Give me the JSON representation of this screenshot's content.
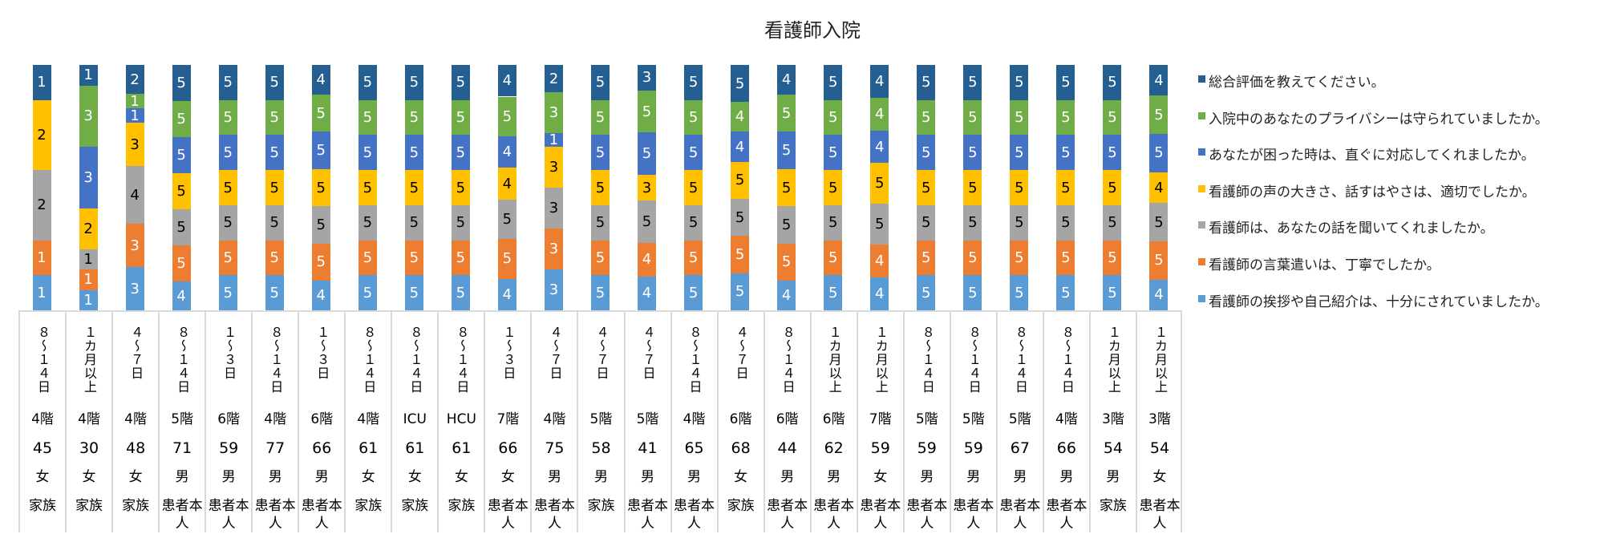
{
  "chart_data": {
    "type": "bar",
    "stacked": "100%",
    "title": "看護師入院",
    "legend_position": "right",
    "categories": [
      {
        "duration": "８～１４日",
        "floor": "4階",
        "age": "45",
        "sex": "女",
        "relation": "家族"
      },
      {
        "duration": "１カ月以上",
        "floor": "4階",
        "age": "30",
        "sex": "女",
        "relation": "家族"
      },
      {
        "duration": "４～７日",
        "floor": "4階",
        "age": "48",
        "sex": "女",
        "relation": "家族"
      },
      {
        "duration": "８～１４日",
        "floor": "5階",
        "age": "71",
        "sex": "男",
        "relation": "患者本人"
      },
      {
        "duration": "１～３日",
        "floor": "6階",
        "age": "59",
        "sex": "男",
        "relation": "患者本人"
      },
      {
        "duration": "８～１４日",
        "floor": "4階",
        "age": "77",
        "sex": "男",
        "relation": "患者本人"
      },
      {
        "duration": "１～３日",
        "floor": "6階",
        "age": "66",
        "sex": "男",
        "relation": "患者本人"
      },
      {
        "duration": "８～１４日",
        "floor": "4階",
        "age": "61",
        "sex": "女",
        "relation": "家族"
      },
      {
        "duration": "８～１４日",
        "floor": "ICU",
        "age": "61",
        "sex": "女",
        "relation": "家族"
      },
      {
        "duration": "８～１４日",
        "floor": "HCU",
        "age": "61",
        "sex": "女",
        "relation": "家族"
      },
      {
        "duration": "１～３日",
        "floor": "7階",
        "age": "66",
        "sex": "女",
        "relation": "患者本人"
      },
      {
        "duration": "４～７日",
        "floor": "4階",
        "age": "75",
        "sex": "男",
        "relation": "患者本人"
      },
      {
        "duration": "４～７日",
        "floor": "5階",
        "age": "58",
        "sex": "男",
        "relation": "家族"
      },
      {
        "duration": "４～７日",
        "floor": "5階",
        "age": "41",
        "sex": "男",
        "relation": "患者本人"
      },
      {
        "duration": "８～１４日",
        "floor": "4階",
        "age": "65",
        "sex": "男",
        "relation": "患者本人"
      },
      {
        "duration": "４～７日",
        "floor": "6階",
        "age": "68",
        "sex": "女",
        "relation": "家族"
      },
      {
        "duration": "８～１４日",
        "floor": "6階",
        "age": "44",
        "sex": "男",
        "relation": "患者本人"
      },
      {
        "duration": "１カ月以上",
        "floor": "6階",
        "age": "62",
        "sex": "男",
        "relation": "患者本人"
      },
      {
        "duration": "１カ月以上",
        "floor": "7階",
        "age": "59",
        "sex": "女",
        "relation": "患者本人"
      },
      {
        "duration": "８～１４日",
        "floor": "5階",
        "age": "59",
        "sex": "男",
        "relation": "患者本人"
      },
      {
        "duration": "８～１４日",
        "floor": "5階",
        "age": "59",
        "sex": "男",
        "relation": "患者本人"
      },
      {
        "duration": "８～１４日",
        "floor": "5階",
        "age": "67",
        "sex": "男",
        "relation": "患者本人"
      },
      {
        "duration": "８～１４日",
        "floor": "4階",
        "age": "66",
        "sex": "男",
        "relation": "患者本人"
      },
      {
        "duration": "１カ月以上",
        "floor": "3階",
        "age": "54",
        "sex": "男",
        "relation": "家族"
      },
      {
        "duration": "１カ月以上",
        "floor": "3階",
        "age": "54",
        "sex": "女",
        "relation": "患者本人"
      }
    ],
    "series": [
      {
        "name": "看護師の挨拶や自己紹介は、十分にされていましたか。",
        "color": "#5B9BD5",
        "label_color": "#ffffff",
        "values": [
          1,
          1,
          3,
          4,
          5,
          5,
          4,
          5,
          5,
          5,
          4,
          3,
          5,
          4,
          5,
          5,
          4,
          5,
          4,
          5,
          5,
          5,
          5,
          5,
          4
        ]
      },
      {
        "name": "看護師の言葉遣いは、丁寧でしたか。",
        "color": "#ED7D31",
        "label_color": "#ffffff",
        "values": [
          1,
          1,
          3,
          5,
          5,
          5,
          5,
          5,
          5,
          5,
          5,
          3,
          5,
          4,
          5,
          5,
          5,
          5,
          4,
          5,
          5,
          5,
          5,
          5,
          5
        ]
      },
      {
        "name": "看護師は、あなたの話を聞いてくれましたか。",
        "color": "#A5A5A5",
        "label_color": "#000000",
        "values": [
          2,
          1,
          4,
          5,
          5,
          5,
          5,
          5,
          5,
          5,
          5,
          3,
          5,
          5,
          5,
          5,
          5,
          5,
          5,
          5,
          5,
          5,
          5,
          5,
          5
        ]
      },
      {
        "name": "看護師の声の大きさ、話すはやさは、適切でしたか。",
        "color": "#FFC000",
        "label_color": "#000000",
        "values": [
          2,
          2,
          3,
          5,
          5,
          5,
          5,
          5,
          5,
          5,
          4,
          3,
          5,
          3,
          5,
          5,
          5,
          5,
          5,
          5,
          5,
          5,
          5,
          5,
          4
        ]
      },
      {
        "name": "あなたが困った時は、直ぐに対応してくれましたか。",
        "color": "#4472C4",
        "label_color": "#ffffff",
        "values": [
          0,
          3,
          1,
          5,
          5,
          5,
          5,
          5,
          5,
          5,
          4,
          1,
          5,
          5,
          5,
          4,
          5,
          5,
          4,
          5,
          5,
          5,
          5,
          5,
          5
        ]
      },
      {
        "name": "入院中のあなたのプライバシーは守られていましたか。",
        "color": "#70AD47",
        "label_color": "#ffffff",
        "values": [
          0,
          3,
          1,
          5,
          5,
          5,
          5,
          5,
          5,
          5,
          5,
          3,
          5,
          5,
          5,
          4,
          5,
          5,
          4,
          5,
          5,
          5,
          5,
          5,
          5
        ]
      },
      {
        "name": "総合評価を教えてください。",
        "color": "#255E91",
        "label_color": "#ffffff",
        "values": [
          1,
          1,
          2,
          5,
          5,
          5,
          4,
          5,
          5,
          5,
          4,
          2,
          5,
          3,
          5,
          5,
          4,
          5,
          4,
          5,
          5,
          5,
          5,
          5,
          4
        ]
      }
    ]
  }
}
